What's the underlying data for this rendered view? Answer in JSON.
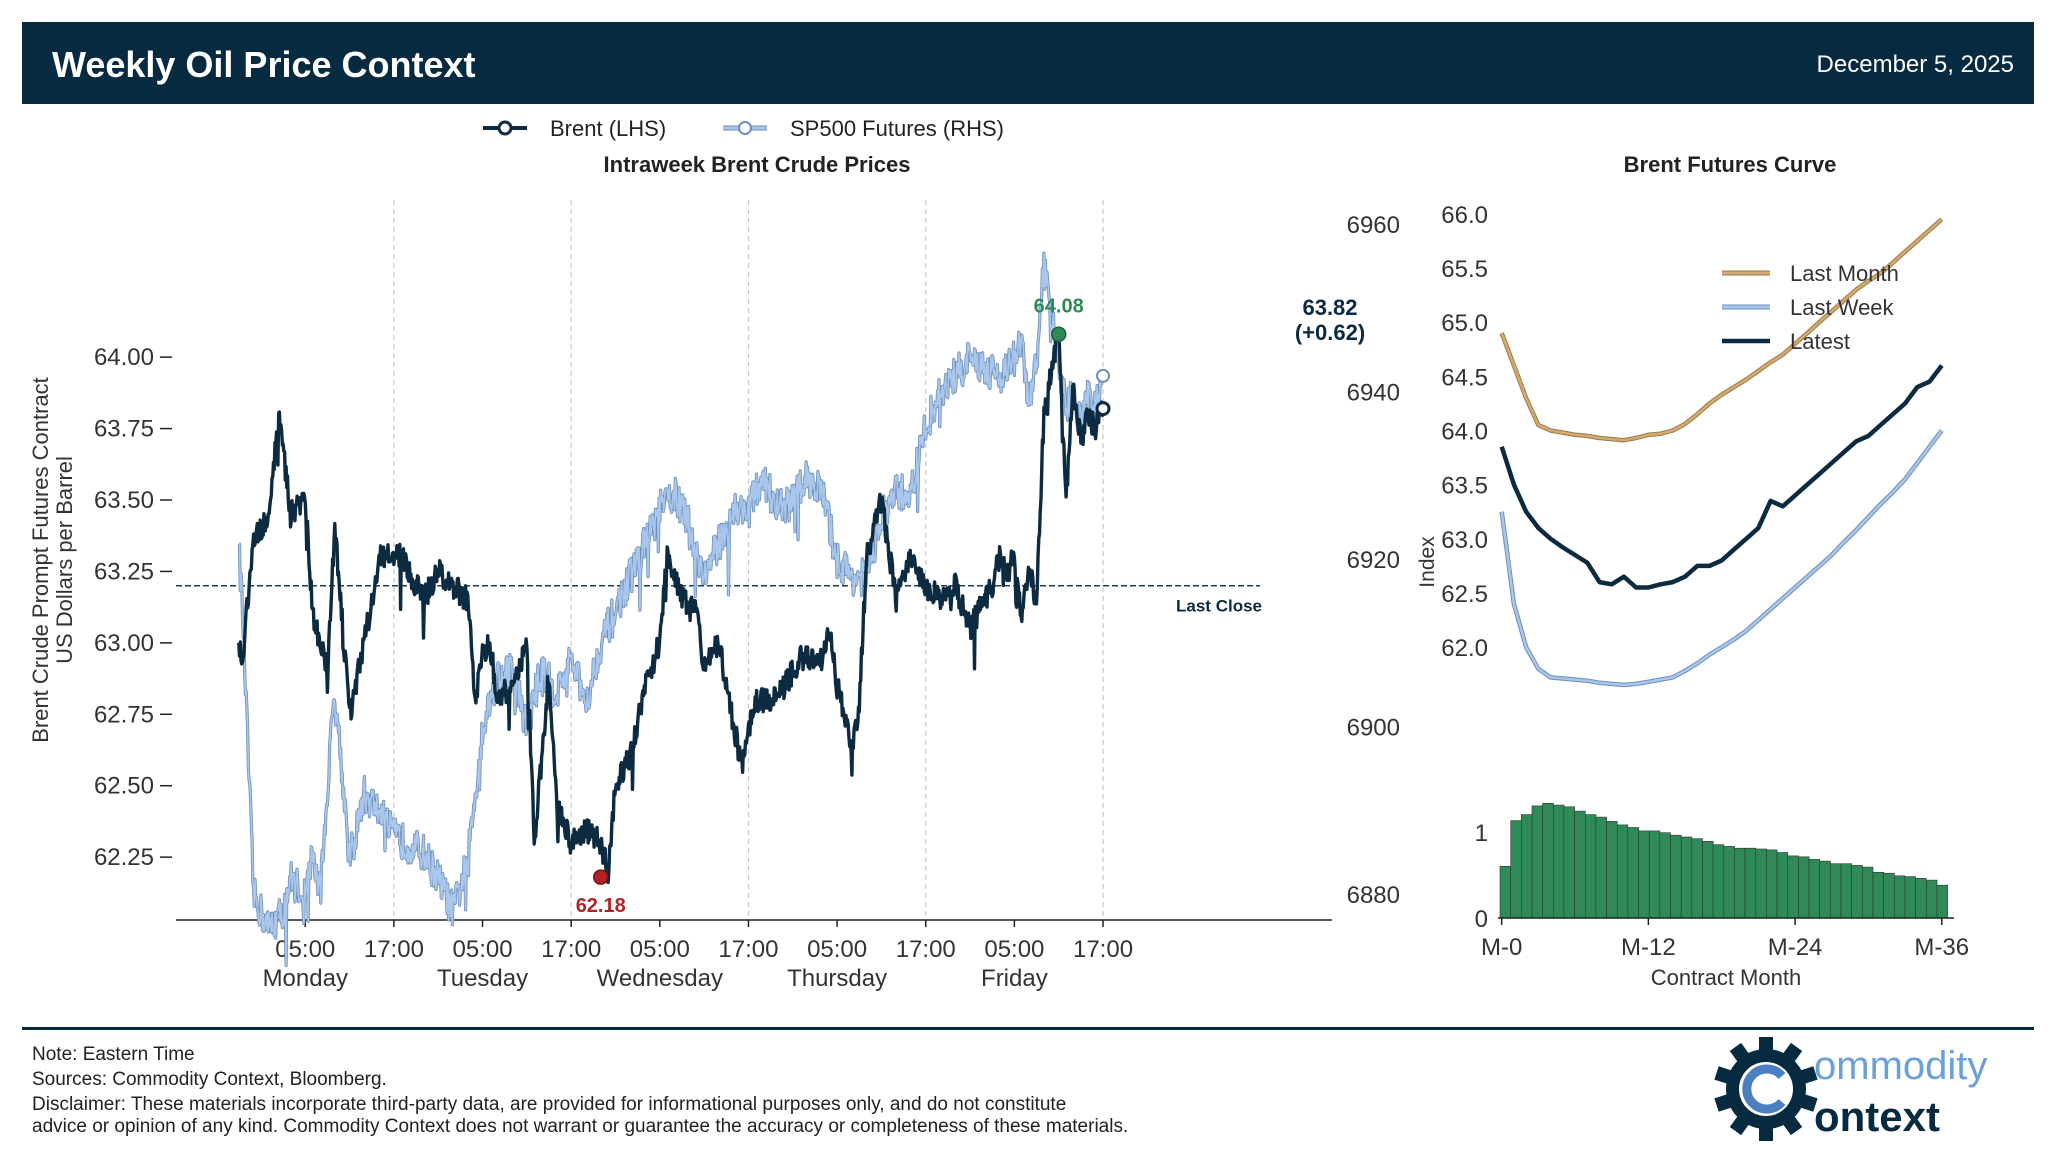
{
  "header": {
    "title": "Weekly Oil Price Context",
    "date": "December 5, 2025"
  },
  "colors": {
    "header_bg": "#062a40",
    "brent": "#0c2a40",
    "sp500": "#a9c6ec",
    "last_month": "#d3aa72",
    "latest": "#0c2a40",
    "histogram": "#2e8b57",
    "high": "#2e8b57",
    "low": "#b22222"
  },
  "chart_data": [
    {
      "type": "line",
      "title": "Intraweek Brent Crude Prices",
      "ylabel_lines": [
        "Brent Crude Prompt Futures Contract",
        "US Dollars per Barrel"
      ],
      "legend": [
        "Brent (LHS)",
        "SP500 Futures (RHS)"
      ],
      "ylim": [
        62.03,
        64.55
      ],
      "yticks": [
        "64.00",
        "63.75",
        "63.50",
        "63.25",
        "63.00",
        "62.75",
        "62.50",
        "62.25"
      ],
      "y2lim": [
        6877,
        6963
      ],
      "y2ticks": [
        "6960",
        "6940",
        "6920",
        "6900",
        "6880"
      ],
      "xlim": [
        -17.5,
        139
      ],
      "xticks": [
        {
          "t": 0,
          "top": "05:00",
          "bottom": "Monday"
        },
        {
          "t": 12,
          "top": "17:00",
          "bottom": ""
        },
        {
          "t": 24,
          "top": "05:00",
          "bottom": "Tuesday"
        },
        {
          "t": 36,
          "top": "17:00",
          "bottom": ""
        },
        {
          "t": 48,
          "top": "05:00",
          "bottom": "Wednesday"
        },
        {
          "t": 60,
          "top": "17:00",
          "bottom": ""
        },
        {
          "t": 72,
          "top": "05:00",
          "bottom": "Thursday"
        },
        {
          "t": 84,
          "top": "17:00",
          "bottom": ""
        },
        {
          "t": 96,
          "top": "05:00",
          "bottom": "Friday"
        },
        {
          "t": 108,
          "top": "17:00",
          "bottom": ""
        }
      ],
      "last_close": {
        "value": 63.2,
        "label": "Last Close"
      },
      "high": {
        "t": 102,
        "value": 64.08,
        "label": "64.08"
      },
      "low": {
        "t": 40,
        "value": 62.18,
        "label": "62.18"
      },
      "latest": {
        "line1": "63.82",
        "line2": "(+0.62)",
        "value": 63.82
      },
      "brent_series": {
        "name": "Brent (LHS)",
        "t": [
          -9,
          -8.5,
          -7,
          -5,
          -3.5,
          -2,
          0,
          1,
          3,
          4,
          6,
          8,
          10,
          12,
          13,
          16,
          18,
          20,
          22,
          23,
          24,
          25,
          26,
          28,
          30,
          31,
          33,
          34,
          36,
          38,
          40,
          41,
          42,
          44,
          46,
          48,
          49,
          51,
          53,
          54,
          56,
          58,
          59,
          60,
          61,
          63,
          65,
          67,
          68,
          70,
          71,
          72,
          73,
          74,
          75,
          76,
          78,
          80,
          82,
          84,
          86,
          88,
          90,
          92,
          93,
          94,
          95,
          96,
          97,
          98,
          99,
          100,
          101,
          102,
          103,
          104,
          105,
          106,
          107,
          108
        ],
        "values": [
          63.0,
          62.95,
          63.35,
          63.45,
          63.8,
          63.45,
          63.5,
          63.1,
          62.9,
          63.4,
          62.75,
          63.0,
          63.3,
          63.3,
          63.3,
          63.15,
          63.25,
          63.2,
          63.15,
          62.8,
          62.95,
          63.0,
          62.8,
          62.85,
          63.0,
          62.3,
          62.9,
          62.45,
          62.3,
          62.35,
          62.3,
          62.2,
          62.5,
          62.6,
          62.85,
          63.0,
          63.3,
          63.15,
          63.1,
          62.9,
          63.0,
          62.7,
          62.6,
          62.7,
          62.8,
          62.8,
          62.85,
          62.95,
          62.95,
          62.95,
          63.05,
          62.85,
          62.75,
          62.6,
          62.8,
          63.3,
          63.5,
          63.15,
          63.3,
          63.2,
          63.15,
          63.2,
          63.05,
          63.15,
          63.2,
          63.3,
          63.25,
          63.3,
          63.1,
          63.25,
          63.15,
          63.8,
          63.95,
          64.08,
          63.5,
          63.9,
          63.7,
          63.8,
          63.75,
          63.82
        ]
      },
      "sp500_series": {
        "name": "SP500 Futures (RHS)",
        "t": [
          -9,
          -8.5,
          -7,
          -5,
          -3,
          -2,
          0,
          1,
          2,
          4,
          6,
          8,
          10,
          12,
          14,
          16,
          18,
          20,
          22,
          24,
          26,
          28,
          30,
          32,
          34,
          36,
          38,
          40,
          42,
          44,
          46,
          48,
          50,
          52,
          54,
          56,
          58,
          60,
          62,
          64,
          66,
          68,
          70,
          72,
          74,
          76,
          78,
          80,
          82,
          84,
          86,
          88,
          90,
          92,
          94,
          96,
          97,
          98,
          99,
          100,
          101,
          102,
          103,
          104,
          105,
          106,
          107,
          108
        ],
        "values": [
          6922,
          6914,
          6880,
          6876,
          6878,
          6882,
          6880,
          6885,
          6880,
          6905,
          6884,
          6892,
          6890,
          6887,
          6886,
          6885,
          6882,
          6878,
          6884,
          6900,
          6906,
          6907,
          6900,
          6907,
          6904,
          6908,
          6903,
          6910,
          6914,
          6918,
          6922,
          6926,
          6928,
          6924,
          6918,
          6922,
          6926,
          6926,
          6930,
          6926,
          6927,
          6930,
          6928,
          6920,
          6918,
          6918,
          6925,
          6928,
          6928,
          6936,
          6940,
          6942,
          6944,
          6943,
          6942,
          6944,
          6946,
          6938,
          6944,
          6955,
          6949,
          6944,
          6938,
          6940,
          6936,
          6940,
          6938,
          6942
        ]
      }
    },
    {
      "type": "line",
      "title": "Brent Futures Curve",
      "xlabel": "Contract Month",
      "ylabel": "Index",
      "ylim": [
        61.65,
        66.1
      ],
      "yticks": [
        "66.0",
        "65.5",
        "65.0",
        "64.5",
        "64.0",
        "63.5",
        "63.0",
        "62.5",
        "62.0"
      ],
      "xlim": [
        -0.3,
        37
      ],
      "xticks": [
        {
          "m": 0,
          "label": "M-0"
        },
        {
          "m": 12,
          "label": "M-12"
        },
        {
          "m": 24,
          "label": "M-24"
        },
        {
          "m": 36,
          "label": "M-36"
        }
      ],
      "series": [
        {
          "name": "Last Month",
          "values": [
            64.9,
            64.6,
            64.3,
            64.05,
            64.0,
            63.98,
            63.96,
            63.95,
            63.93,
            63.92,
            63.91,
            63.93,
            63.96,
            63.97,
            64.0,
            64.06,
            64.15,
            64.25,
            64.33,
            64.4,
            64.47,
            64.55,
            64.63,
            64.7,
            64.8,
            64.9,
            65.0,
            65.1,
            65.2,
            65.3,
            65.38,
            65.45,
            65.55,
            65.65,
            65.75,
            65.85,
            65.95
          ]
        },
        {
          "name": "Last Week",
          "values": [
            63.25,
            62.4,
            62.0,
            61.8,
            61.72,
            61.71,
            61.7,
            61.69,
            61.67,
            61.66,
            61.65,
            61.66,
            61.68,
            61.7,
            61.72,
            61.78,
            61.85,
            61.93,
            62.0,
            62.07,
            62.15,
            62.25,
            62.35,
            62.45,
            62.55,
            62.65,
            62.75,
            62.85,
            62.97,
            63.08,
            63.2,
            63.32,
            63.43,
            63.55,
            63.7,
            63.85,
            64.0
          ]
        },
        {
          "name": "Latest",
          "values": [
            63.85,
            63.5,
            63.25,
            63.1,
            63.0,
            62.92,
            62.85,
            62.78,
            62.6,
            62.58,
            62.65,
            62.55,
            62.55,
            62.58,
            62.6,
            62.65,
            62.75,
            62.75,
            62.8,
            62.9,
            63.0,
            63.1,
            63.35,
            63.3,
            63.4,
            63.5,
            63.6,
            63.7,
            63.8,
            63.9,
            63.95,
            64.05,
            64.15,
            64.25,
            64.4,
            64.45,
            64.6
          ]
        }
      ]
    },
    {
      "type": "bar",
      "title": "",
      "ylim": [
        0,
        1.45
      ],
      "yticks": [
        "1",
        "0"
      ],
      "values": [
        0.6,
        1.13,
        1.2,
        1.3,
        1.33,
        1.31,
        1.29,
        1.24,
        1.2,
        1.17,
        1.12,
        1.08,
        1.05,
        1.01,
        1.01,
        0.99,
        0.96,
        0.94,
        0.92,
        0.89,
        0.85,
        0.83,
        0.81,
        0.81,
        0.8,
        0.79,
        0.76,
        0.72,
        0.71,
        0.68,
        0.66,
        0.63,
        0.63,
        0.61,
        0.59,
        0.53,
        0.52,
        0.49,
        0.48,
        0.46,
        0.44,
        0.38
      ]
    }
  ],
  "footer": {
    "note": "Note: Eastern Time",
    "sources": "Sources: Commodity Context, Bloomberg.",
    "disclaimer1": "Disclaimer: These materials incorporate third-party data, are provided for informational purposes only, and do not constitute",
    "disclaimer2": "advice or opinion of any kind. Commodity Context does not warrant or guarantee the accuracy or completeness of these materials.",
    "logo_text_top": "ommodity",
    "logo_text_bottom": "ontext"
  }
}
